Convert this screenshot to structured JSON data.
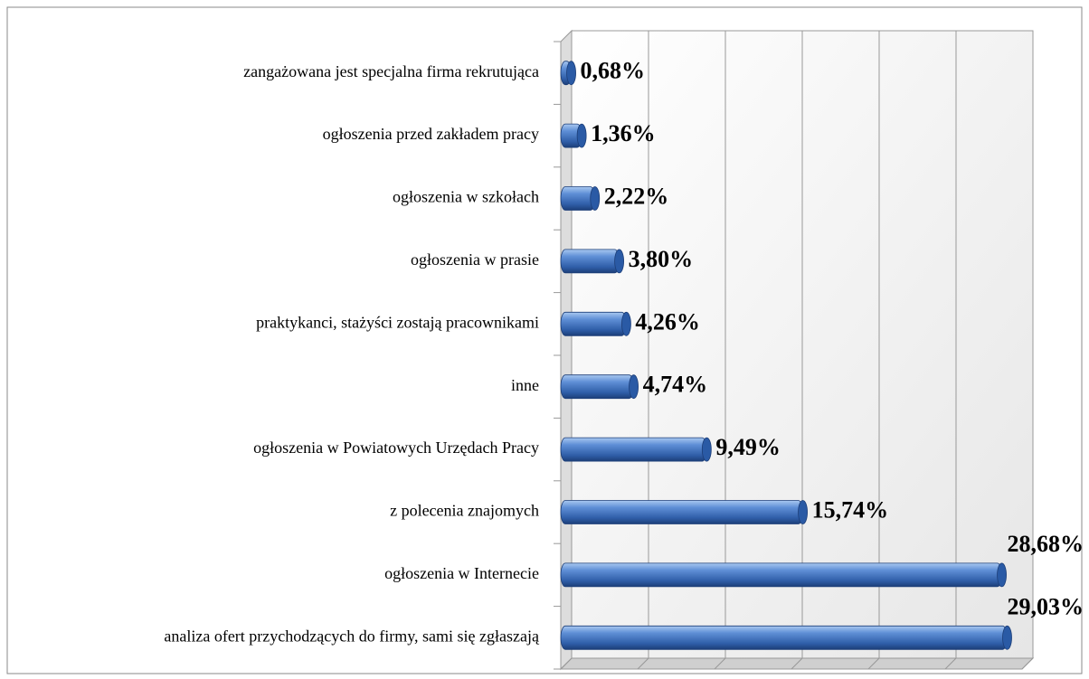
{
  "chart_data": {
    "type": "bar",
    "orientation": "horizontal",
    "categories": [
      "zangażowana jest specjalna firma rekrutująca",
      "ogłoszenia przed zakładem pracy",
      "ogłoszenia w szkołach",
      "ogłoszenia w prasie",
      "praktykanci, stażyści zostają pracownikami",
      "inne",
      "ogłoszenia w Powiatowych Urzędach Pracy",
      "z polecenia znajomych",
      "ogłoszenia w Internecie",
      "analiza ofert przychodzących do firmy, sami się zgłaszają"
    ],
    "values": [
      0.68,
      1.36,
      2.22,
      3.8,
      4.26,
      4.74,
      9.49,
      15.74,
      28.68,
      29.03
    ],
    "value_labels": [
      "0,68%",
      "1,36%",
      "2,22%",
      "3,80%",
      "4,26%",
      "4,74%",
      "9,49%",
      "15,74%",
      "28,68%",
      "29,03%"
    ],
    "color": "#3a6fc0",
    "xlim": [
      0,
      30
    ],
    "xticks": [
      0,
      5,
      10,
      15,
      20,
      25,
      30
    ],
    "grid": true
  }
}
